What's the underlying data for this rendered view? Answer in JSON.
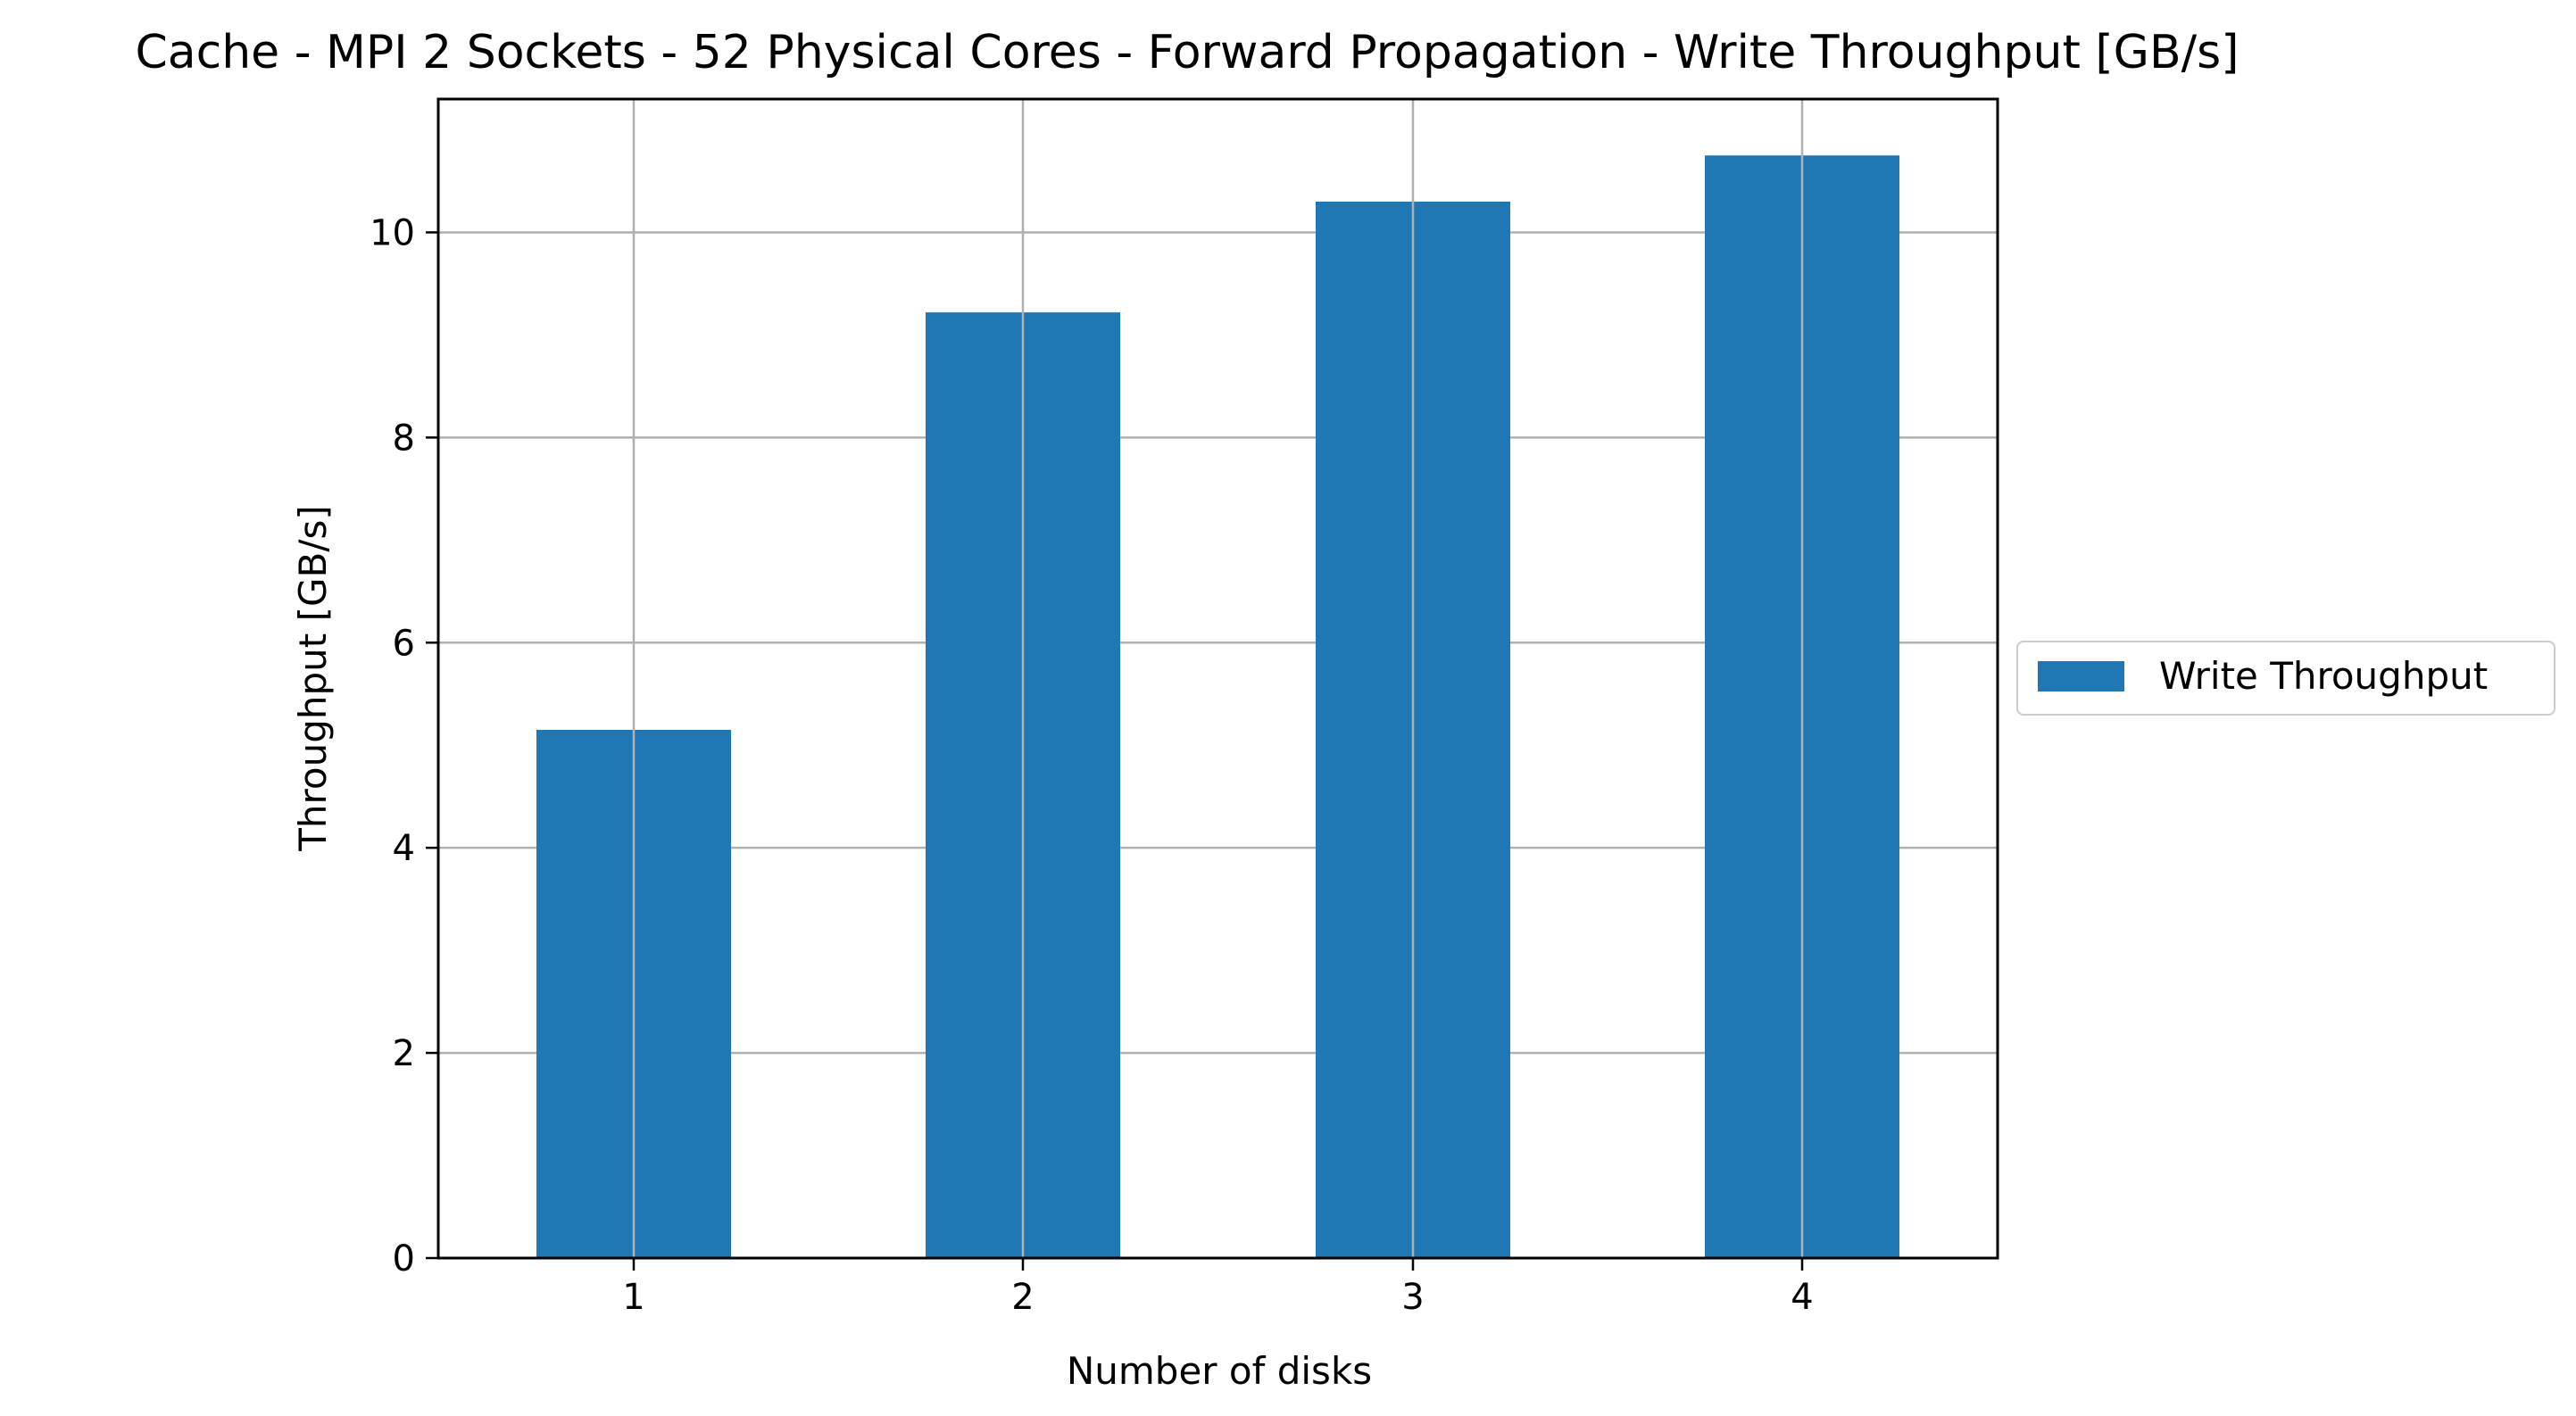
{
  "chart_data": {
    "type": "bar",
    "title": "Cache - MPI 2 Sockets - 52 Physical Cores - Forward Propagation - Write Throughput [GB/s]",
    "xlabel": "Number of disks",
    "ylabel": "Throughput [GB/s]",
    "categories": [
      "1",
      "2",
      "3",
      "4"
    ],
    "series": [
      {
        "name": "Write Throughput",
        "values": [
          5.15,
          9.22,
          10.3,
          10.75
        ],
        "color": "#1f77b4"
      }
    ],
    "ylim": [
      0,
      11.3
    ],
    "yticks": [
      0,
      2,
      4,
      6,
      8,
      10
    ],
    "grid": true,
    "legend": "center-right-outside"
  }
}
